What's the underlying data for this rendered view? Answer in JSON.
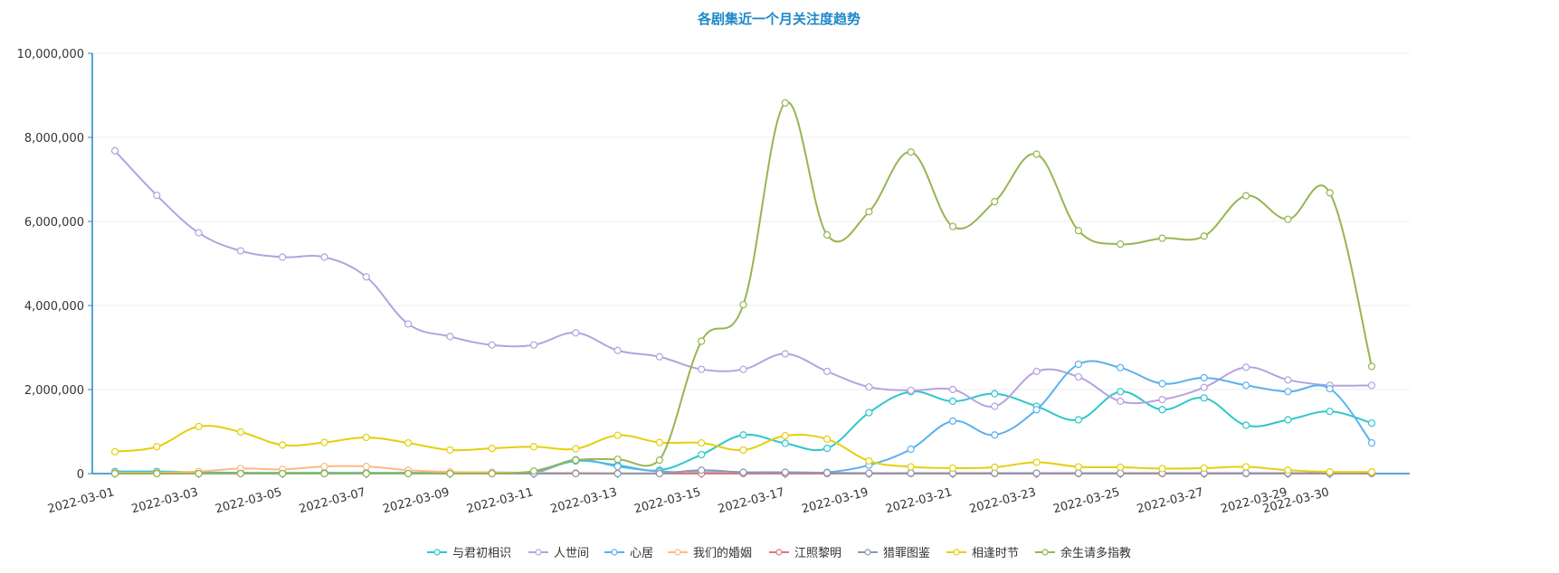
{
  "chart_data": {
    "type": "line",
    "title": "各剧集近一个月关注度趋势",
    "xlabel": "",
    "ylabel": "",
    "ylim": [
      0,
      10000000
    ],
    "yticks": [
      0,
      2000000,
      4000000,
      6000000,
      8000000,
      10000000
    ],
    "ytick_labels": [
      "0",
      "2,000,000",
      "4,000,000",
      "6,000,000",
      "8,000,000",
      "10,000,000"
    ],
    "x": [
      "2022-03-01",
      "2022-03-02",
      "2022-03-03",
      "2022-03-04",
      "2022-03-05",
      "2022-03-06",
      "2022-03-07",
      "2022-03-08",
      "2022-03-09",
      "2022-03-10",
      "2022-03-11",
      "2022-03-12",
      "2022-03-13",
      "2022-03-14",
      "2022-03-15",
      "2022-03-16",
      "2022-03-17",
      "2022-03-18",
      "2022-03-19",
      "2022-03-20",
      "2022-03-21",
      "2022-03-22",
      "2022-03-23",
      "2022-03-24",
      "2022-03-25",
      "2022-03-26",
      "2022-03-27",
      "2022-03-28",
      "2022-03-29",
      "2022-03-30",
      "2022-03-31"
    ],
    "xtick_labels": [
      "2022-03-01",
      "2022-03-03",
      "2022-03-05",
      "2022-03-07",
      "2022-03-09",
      "2022-03-11",
      "2022-03-13",
      "2022-03-15",
      "2022-03-17",
      "2022-03-19",
      "2022-03-21",
      "2022-03-23",
      "2022-03-25",
      "2022-03-27",
      "2022-03-29",
      "2022-03-30"
    ],
    "xtick_indices": [
      0,
      2,
      4,
      6,
      8,
      10,
      12,
      14,
      16,
      18,
      20,
      22,
      24,
      26,
      28,
      29
    ],
    "grid": true,
    "legend_position": "bottom-center",
    "series": [
      {
        "name": "与君初相识",
        "color": "#2ec7c9",
        "values": [
          50000,
          50000,
          30000,
          20000,
          20000,
          20000,
          20000,
          20000,
          20000,
          30000,
          30000,
          300000,
          200000,
          80000,
          450000,
          920000,
          720000,
          600000,
          1450000,
          1950000,
          1720000,
          1900000,
          1600000,
          1280000,
          1950000,
          1520000,
          1800000,
          1150000,
          1280000,
          1480000,
          1200000
        ]
      },
      {
        "name": "人世间",
        "color": "#b6a2de",
        "values": [
          7680000,
          6620000,
          5730000,
          5300000,
          5150000,
          5150000,
          4680000,
          3560000,
          3260000,
          3060000,
          3060000,
          3350000,
          2930000,
          2780000,
          2480000,
          2480000,
          2850000,
          2430000,
          2060000,
          1980000,
          2000000,
          1600000,
          2430000,
          2300000,
          1720000,
          1760000,
          2050000,
          2530000,
          2230000,
          2100000,
          2100000
        ]
      },
      {
        "name": "心居",
        "color": "#5ab1ef",
        "values": [
          10000,
          10000,
          10000,
          10000,
          10000,
          10000,
          10000,
          10000,
          10000,
          10000,
          10000,
          330000,
          170000,
          50000,
          30000,
          30000,
          30000,
          30000,
          200000,
          580000,
          1250000,
          920000,
          1520000,
          2600000,
          2520000,
          2140000,
          2280000,
          2100000,
          1950000,
          2020000,
          730000
        ]
      },
      {
        "name": "我们的婚姻",
        "color": "#ffb980",
        "values": [
          20000,
          20000,
          50000,
          120000,
          100000,
          170000,
          170000,
          80000,
          40000,
          30000,
          20000,
          20000,
          10000,
          10000,
          10000,
          10000,
          10000,
          10000,
          10000,
          10000,
          10000,
          10000,
          10000,
          10000,
          10000,
          10000,
          10000,
          10000,
          10000,
          10000,
          10000
        ]
      },
      {
        "name": "江照黎明",
        "color": "#d87a80",
        "values": [
          0,
          0,
          0,
          0,
          0,
          0,
          0,
          0,
          0,
          0,
          0,
          0,
          0,
          0,
          0,
          0,
          0,
          0,
          0,
          0,
          0,
          0,
          0,
          0,
          0,
          0,
          0,
          0,
          0,
          0,
          0
        ]
      },
      {
        "name": "猎罪图鉴",
        "color": "#8d98b3",
        "values": [
          0,
          0,
          0,
          0,
          0,
          0,
          0,
          0,
          0,
          0,
          0,
          0,
          0,
          0,
          80000,
          30000,
          30000,
          20000,
          10000,
          10000,
          10000,
          10000,
          10000,
          10000,
          10000,
          10000,
          10000,
          10000,
          10000,
          10000,
          10000
        ]
      },
      {
        "name": "相逢时节",
        "color": "#e5cf0d",
        "values": [
          520000,
          640000,
          1120000,
          990000,
          680000,
          740000,
          860000,
          730000,
          560000,
          600000,
          640000,
          590000,
          910000,
          740000,
          730000,
          560000,
          900000,
          820000,
          300000,
          160000,
          130000,
          150000,
          270000,
          160000,
          150000,
          120000,
          130000,
          160000,
          80000,
          40000,
          40000
        ]
      },
      {
        "name": "余生请多指教",
        "color": "#97b552",
        "values": [
          0,
          0,
          0,
          0,
          0,
          0,
          0,
          0,
          0,
          0,
          60000,
          320000,
          340000,
          320000,
          3150000,
          4020000,
          8820000,
          5680000,
          6230000,
          7650000,
          5880000,
          6470000,
          7600000,
          5780000,
          5460000,
          5600000,
          5650000,
          6610000,
          6050000,
          6680000,
          2550000
        ]
      }
    ]
  }
}
